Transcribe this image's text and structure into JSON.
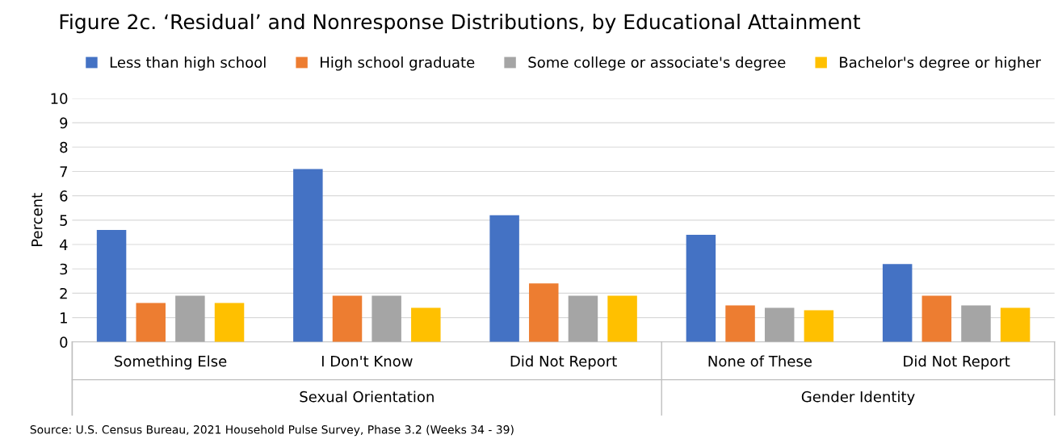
{
  "chart_data": {
    "type": "bar",
    "title": "Figure 2c. ‘Residual’ and Nonresponse Distributions, by Educational Attainment",
    "ylabel": "Percent",
    "categories": [
      "Something Else",
      "I Don't Know",
      "Did Not Report",
      "None of These",
      "Did Not Report"
    ],
    "series": [
      {
        "name": "Less than high school",
        "color": "#4472c4",
        "values": [
          4.6,
          7.1,
          5.2,
          4.4,
          3.2
        ]
      },
      {
        "name": "High school graduate",
        "color": "#ed7d31",
        "values": [
          1.6,
          1.9,
          2.4,
          1.5,
          1.9
        ]
      },
      {
        "name": "Some college or associate's degree",
        "color": "#a5a5a5",
        "values": [
          1.9,
          1.9,
          1.9,
          1.4,
          1.5
        ]
      },
      {
        "name": "Bachelor's degree or higher",
        "color": "#ffc000",
        "values": [
          1.6,
          1.4,
          1.9,
          1.3,
          1.4
        ]
      }
    ],
    "ylim": [
      0,
      10
    ],
    "yticks": [
      0,
      1,
      2,
      3,
      4,
      5,
      6,
      7,
      8,
      9,
      10
    ],
    "grid": "y",
    "legend": "top",
    "annotations": [
      "Sexual Orientation",
      "Gender Identity",
      "Source: U.S. Census Bureau, 2021 Household Pulse Survey, Phase 3.2 (Weeks 34 - 39)"
    ]
  }
}
